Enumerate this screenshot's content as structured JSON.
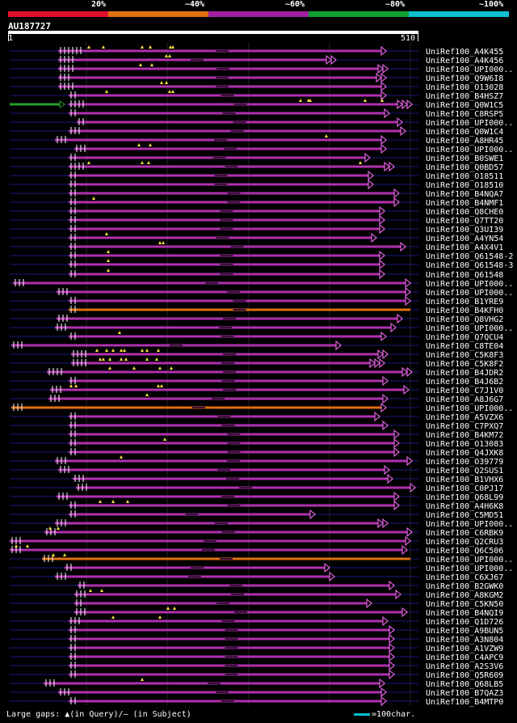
{
  "legend": {
    "labels": [
      "20%",
      "~40%",
      "~60%",
      "~80%",
      "~100%"
    ],
    "colors": [
      "#e0102a",
      "#e07010",
      "#a020a0",
      "#10a030",
      "#10c0d0"
    ]
  },
  "query": {
    "name": "AU187727",
    "start": "1",
    "end": "510"
  },
  "footer": {
    "gaps_text": "Large gaps: ▲(in Query)/— (in Subject)",
    "scale_text": "=100char."
  },
  "hits": [
    {
      "label": "UniRef100_A4K455",
      "start": 72,
      "end": 478,
      "color": "#b030b0",
      "tris": [
        1
      ],
      "gaps": [
        6
      ],
      "marks": [
        110,
        128,
        176,
        186,
        211,
        214
      ]
    },
    {
      "label": "UniRef100_A4K456",
      "start": 72,
      "end": 416,
      "color": "#b030b0",
      "tris": [
        2
      ],
      "gaps": [
        4
      ],
      "marks": [
        206,
        210
      ]
    },
    {
      "label": "UniRef100_UPI000..",
      "start": 72,
      "end": 480,
      "color": "#b030b0",
      "tris": [
        2
      ],
      "gaps": [
        4
      ],
      "marks": [
        174,
        188
      ]
    },
    {
      "label": "UniRef100_Q9W6I8",
      "start": 72,
      "end": 478,
      "color": "#b030b0",
      "tris": [
        2
      ],
      "gaps": [
        3
      ],
      "marks": []
    },
    {
      "label": "UniRef100_O13028",
      "start": 72,
      "end": 478,
      "color": "#b030b0",
      "tris": [
        1
      ],
      "gaps": [
        4
      ],
      "marks": [
        200,
        206
      ]
    },
    {
      "label": "UniRef100_B4HSZ7",
      "start": 85,
      "end": 478,
      "color": "#b030b0",
      "tris": [
        1
      ],
      "gaps": [
        2
      ],
      "marks": [
        132,
        210,
        214
      ]
    },
    {
      "label": "UniRef100_Q0W1C5",
      "start": 85,
      "end": 510,
      "color": "#b030b0",
      "tris": [
        3
      ],
      "gaps": [
        4
      ],
      "marks": [
        372,
        382,
        384,
        452,
        473
      ],
      "pre": {
        "start": 12,
        "end": 74,
        "color": "#20a030"
      }
    },
    {
      "label": "UniRef100_C8RSP5",
      "start": 85,
      "end": 482,
      "color": "#b030b0",
      "tris": [
        1
      ],
      "gaps": [
        2
      ],
      "marks": []
    },
    {
      "label": "UniRef100_UPI000..",
      "start": 95,
      "end": 498,
      "color": "#b030b0",
      "tris": [
        1
      ],
      "gaps": [
        2
      ],
      "marks": []
    },
    {
      "label": "UniRef100_Q0W1C4",
      "start": 85,
      "end": 502,
      "color": "#b030b0",
      "tris": [
        1
      ],
      "gaps": [
        3
      ],
      "marks": []
    },
    {
      "label": "UniRef100_A8HR45",
      "start": 68,
      "end": 478,
      "color": "#b030b0",
      "tris": [
        1
      ],
      "gaps": [
        3
      ],
      "marks": [
        404
      ]
    },
    {
      "label": "UniRef100_UPI000..",
      "start": 92,
      "end": 478,
      "color": "#b030b0",
      "tris": [
        1
      ],
      "gaps": [
        3
      ],
      "marks": [
        172,
        186
      ]
    },
    {
      "label": "UniRef100_B0SWE1",
      "start": 85,
      "end": 458,
      "color": "#b030b0",
      "tris": [
        1
      ],
      "gaps": [
        2
      ],
      "marks": []
    },
    {
      "label": "UniRef100_Q0BD57",
      "start": 85,
      "end": 488,
      "color": "#b030b0",
      "tris": [
        2
      ],
      "gaps": [
        4
      ],
      "marks": [
        110,
        176,
        184,
        446
      ]
    },
    {
      "label": "UniRef100_O18511",
      "start": 85,
      "end": 462,
      "color": "#b030b0",
      "tris": [
        1
      ],
      "gaps": [
        2
      ],
      "marks": []
    },
    {
      "label": "UniRef100_O18510",
      "start": 85,
      "end": 462,
      "color": "#b030b0",
      "tris": [
        1
      ],
      "gaps": [
        2
      ],
      "marks": []
    },
    {
      "label": "UniRef100_B4NQA7",
      "start": 85,
      "end": 494,
      "color": "#b030b0",
      "tris": [
        1
      ],
      "gaps": [
        2
      ],
      "marks": []
    },
    {
      "label": "UniRef100_B4NMF1",
      "start": 85,
      "end": 494,
      "color": "#b030b0",
      "tris": [
        1
      ],
      "gaps": [
        2
      ],
      "marks": [
        116
      ]
    },
    {
      "label": "UniRef100_Q8CHE0",
      "start": 85,
      "end": 476,
      "color": "#b030b0",
      "tris": [
        1
      ],
      "gaps": [
        2
      ],
      "marks": []
    },
    {
      "label": "UniRef100_Q7TT20",
      "start": 85,
      "end": 476,
      "color": "#b030b0",
      "tris": [
        1
      ],
      "gaps": [
        2
      ],
      "marks": []
    },
    {
      "label": "UniRef100_Q3UI39",
      "start": 85,
      "end": 476,
      "color": "#b030b0",
      "tris": [
        1
      ],
      "gaps": [
        2
      ],
      "marks": []
    },
    {
      "label": "UniRef100_A4YN54",
      "start": 85,
      "end": 466,
      "color": "#b030b0",
      "tris": [
        1
      ],
      "gaps": [
        2
      ],
      "marks": [
        132
      ]
    },
    {
      "label": "UniRef100_A4X4V1",
      "start": 85,
      "end": 502,
      "color": "#b030b0",
      "tris": [
        1
      ],
      "gaps": [
        2
      ],
      "marks": [
        198,
        202
      ]
    },
    {
      "label": "UniRef100_Q61548-2",
      "start": 85,
      "end": 476,
      "color": "#b030b0",
      "tris": [
        1
      ],
      "gaps": [
        2
      ],
      "marks": [
        134
      ]
    },
    {
      "label": "UniRef100_Q61548-3",
      "start": 85,
      "end": 476,
      "color": "#b030b0",
      "tris": [
        1
      ],
      "gaps": [
        2
      ],
      "marks": [
        134
      ]
    },
    {
      "label": "UniRef100_Q61548",
      "start": 85,
      "end": 476,
      "color": "#b030b0",
      "tris": [
        1
      ],
      "gaps": [
        2
      ],
      "marks": [
        134
      ]
    },
    {
      "label": "UniRef100_UPI000..",
      "start": 16,
      "end": 508,
      "color": "#b030b0",
      "tris": [
        1
      ],
      "gaps": [
        3
      ],
      "marks": []
    },
    {
      "label": "UniRef100_UPI000..",
      "start": 70,
      "end": 508,
      "color": "#b030b0",
      "tris": [
        1
      ],
      "gaps": [
        3
      ],
      "marks": []
    },
    {
      "label": "UniRef100_B1YRE9",
      "start": 85,
      "end": 508,
      "color": "#b030b0",
      "tris": [
        1
      ],
      "gaps": [
        2
      ],
      "marks": []
    },
    {
      "label": "UniRef100_B4KFH0",
      "start": 85,
      "end": 508,
      "color": "#e07010",
      "tris": [
        0
      ],
      "gaps": [
        2
      ],
      "marks": []
    },
    {
      "label": "UniRef100_Q8VHG2",
      "start": 70,
      "end": 498,
      "color": "#b030b0",
      "tris": [
        1
      ],
      "gaps": [
        3
      ],
      "marks": []
    },
    {
      "label": "UniRef100_UPI000..",
      "start": 68,
      "end": 490,
      "color": "#b030b0",
      "tris": [
        1
      ],
      "gaps": [
        3
      ],
      "marks": []
    },
    {
      "label": "UniRef100_Q7QCU4",
      "start": 85,
      "end": 478,
      "color": "#b030b0",
      "tris": [
        1
      ],
      "gaps": [
        2
      ],
      "marks": [
        148
      ]
    },
    {
      "label": "UniRef100_C8TE04",
      "start": 14,
      "end": 422,
      "color": "#b030b0",
      "tris": [
        1
      ],
      "gaps": [
        3
      ],
      "marks": []
    },
    {
      "label": "UniRef100_C5K8F3",
      "start": 88,
      "end": 480,
      "color": "#b030b0",
      "tris": [
        2
      ],
      "gaps": [
        4
      ],
      "marks": [
        120,
        132,
        140,
        150,
        154,
        176,
        182,
        196
      ]
    },
    {
      "label": "UniRef100_C5K8F2",
      "start": 88,
      "end": 476,
      "color": "#b030b0",
      "tris": [
        3
      ],
      "gaps": [
        4
      ],
      "marks": [
        124,
        128,
        136,
        150,
        156,
        182,
        194
      ]
    },
    {
      "label": "UniRef100_B4JDR2",
      "start": 58,
      "end": 510,
      "color": "#b030b0",
      "tris": [
        2
      ],
      "gaps": [
        4
      ],
      "marks": [
        136,
        166,
        198,
        212
      ]
    },
    {
      "label": "UniRef100_B4J6B2",
      "start": 85,
      "end": 480,
      "color": "#b030b0",
      "tris": [
        1
      ],
      "gaps": [
        2
      ],
      "marks": []
    },
    {
      "label": "UniRef100_C7J1V0",
      "start": 62,
      "end": 506,
      "color": "#b030b0",
      "tris": [
        1
      ],
      "gaps": [
        3
      ],
      "marks": [
        88,
        94,
        196,
        200
      ]
    },
    {
      "label": "UniRef100_A8J6G7",
      "start": 60,
      "end": 480,
      "color": "#b030b0",
      "tris": [
        1
      ],
      "gaps": [
        3
      ],
      "marks": [
        182
      ]
    },
    {
      "label": "UniRef100_UPI000..",
      "start": 14,
      "end": 478,
      "color": "#e07010",
      "tris": [
        1
      ],
      "gaps": [
        3
      ],
      "marks": []
    },
    {
      "label": "UniRef100_A5VZX6",
      "start": 85,
      "end": 470,
      "color": "#b030b0",
      "tris": [
        1
      ],
      "gaps": [
        2
      ],
      "marks": []
    },
    {
      "label": "UniRef100_C7PXQ7",
      "start": 85,
      "end": 480,
      "color": "#b030b0",
      "tris": [
        1
      ],
      "gaps": [
        2
      ],
      "marks": []
    },
    {
      "label": "UniRef100_B4KM72",
      "start": 85,
      "end": 494,
      "color": "#b030b0",
      "tris": [
        1
      ],
      "gaps": [
        2
      ],
      "marks": []
    },
    {
      "label": "UniRef100_O13083",
      "start": 85,
      "end": 494,
      "color": "#b030b0",
      "tris": [
        1
      ],
      "gaps": [
        2
      ],
      "marks": [
        204
      ]
    },
    {
      "label": "UniRef100_Q4JXK8",
      "start": 85,
      "end": 494,
      "color": "#b030b0",
      "tris": [
        1
      ],
      "gaps": [
        2
      ],
      "marks": []
    },
    {
      "label": "UniRef100_O39779",
      "start": 68,
      "end": 510,
      "color": "#b030b0",
      "tris": [
        1
      ],
      "gaps": [
        3
      ],
      "marks": [
        150
      ]
    },
    {
      "label": "UniRef100_Q2SUS1",
      "start": 72,
      "end": 482,
      "color": "#b030b0",
      "tris": [
        1
      ],
      "gaps": [
        3
      ],
      "marks": []
    },
    {
      "label": "UniRef100_B1VHX6",
      "start": 90,
      "end": 486,
      "color": "#b030b0",
      "tris": [
        1
      ],
      "gaps": [
        3
      ],
      "marks": []
    },
    {
      "label": "UniRef100_C0PJ17",
      "start": 94,
      "end": 514,
      "color": "#b030b0",
      "tris": [
        1
      ],
      "gaps": [
        3
      ],
      "marks": []
    },
    {
      "label": "UniRef100_Q68L99",
      "start": 70,
      "end": 494,
      "color": "#b030b0",
      "tris": [
        1
      ],
      "gaps": [
        3
      ],
      "marks": []
    },
    {
      "label": "UniRef100_A4H6K8",
      "start": 85,
      "end": 494,
      "color": "#b030b0",
      "tris": [
        1
      ],
      "gaps": [
        2
      ],
      "marks": [
        124,
        140,
        158
      ]
    },
    {
      "label": "UniRef100_C5MD51",
      "start": 85,
      "end": 390,
      "color": "#b030b0",
      "tris": [
        1
      ],
      "gaps": [
        2
      ],
      "marks": []
    },
    {
      "label": "UniRef100_UPI000..",
      "start": 68,
      "end": 480,
      "color": "#b030b0",
      "tris": [
        2
      ],
      "gaps": [
        3
      ],
      "marks": []
    },
    {
      "label": "UniRef100_C6RBK9",
      "start": 55,
      "end": 510,
      "color": "#b030b0",
      "tris": [
        1
      ],
      "gaps": [
        3
      ],
      "marks": [
        62,
        72
      ]
    },
    {
      "label": "UniRef100_Q2CRU3",
      "start": 12,
      "end": 508,
      "color": "#b030b0",
      "tris": [
        1
      ],
      "gaps": [
        3
      ],
      "marks": []
    },
    {
      "label": "UniRef100_Q6C506",
      "start": 12,
      "end": 504,
      "color": "#b030b0",
      "tris": [
        1
      ],
      "gaps": [
        3
      ],
      "marks": [
        20,
        34
      ]
    },
    {
      "label": "UniRef100_UPI000..",
      "start": 52,
      "end": 508,
      "color": "#e07010",
      "tris": [
        0
      ],
      "gaps": [
        3
      ],
      "marks": [
        66,
        80
      ]
    },
    {
      "label": "UniRef100_UPI000..",
      "start": 80,
      "end": 408,
      "color": "#b030b0",
      "tris": [
        1
      ],
      "gaps": [
        2
      ],
      "marks": []
    },
    {
      "label": "UniRef100_C6XJ67",
      "start": 68,
      "end": 414,
      "color": "#b030b0",
      "tris": [
        1
      ],
      "gaps": [
        3
      ],
      "marks": []
    },
    {
      "label": "UniRef100_B2GWK0",
      "start": 96,
      "end": 488,
      "color": "#b030b0",
      "tris": [
        1
      ],
      "gaps": [
        2
      ],
      "marks": []
    },
    {
      "label": "UniRef100_A8KGM2",
      "start": 92,
      "end": 496,
      "color": "#b030b0",
      "tris": [
        1
      ],
      "gaps": [
        3
      ],
      "marks": [
        112,
        126
      ]
    },
    {
      "label": "UniRef100_C5KN50",
      "start": 92,
      "end": 460,
      "color": "#b030b0",
      "tris": [
        1
      ],
      "gaps": [
        2
      ],
      "marks": []
    },
    {
      "label": "UniRef100_B4NQI9",
      "start": 92,
      "end": 504,
      "color": "#b030b0",
      "tris": [
        1
      ],
      "gaps": [
        3
      ],
      "marks": [
        208,
        216
      ]
    },
    {
      "label": "UniRef100_Q1D726",
      "start": 85,
      "end": 480,
      "color": "#b030b0",
      "tris": [
        1
      ],
      "gaps": [
        3
      ],
      "marks": [
        140,
        198
      ]
    },
    {
      "label": "UniRef100_A9BUN5",
      "start": 85,
      "end": 488,
      "color": "#b030b0",
      "tris": [
        1
      ],
      "gaps": [
        2
      ],
      "marks": []
    },
    {
      "label": "UniRef100_A3N804",
      "start": 85,
      "end": 488,
      "color": "#b030b0",
      "tris": [
        1
      ],
      "gaps": [
        2
      ],
      "marks": []
    },
    {
      "label": "UniRef100_A1VZW9",
      "start": 85,
      "end": 488,
      "color": "#b030b0",
      "tris": [
        1
      ],
      "gaps": [
        2
      ],
      "marks": []
    },
    {
      "label": "UniRef100_C4APC9",
      "start": 85,
      "end": 488,
      "color": "#b030b0",
      "tris": [
        1
      ],
      "gaps": [
        2
      ],
      "marks": []
    },
    {
      "label": "UniRef100_A2S3V6",
      "start": 85,
      "end": 488,
      "color": "#b030b0",
      "tris": [
        1
      ],
      "gaps": [
        2
      ],
      "marks": []
    },
    {
      "label": "UniRef100_Q5R609",
      "start": 85,
      "end": 488,
      "color": "#b030b0",
      "tris": [
        1
      ],
      "gaps": [
        2
      ],
      "marks": []
    },
    {
      "label": "UniRef100_Q68LB5",
      "start": 54,
      "end": 476,
      "color": "#b030b0",
      "tris": [
        1
      ],
      "gaps": [
        3
      ],
      "marks": [
        176
      ]
    },
    {
      "label": "UniRef100_B7QAZ3",
      "start": 72,
      "end": 478,
      "color": "#b030b0",
      "tris": [
        1
      ],
      "gaps": [
        3
      ],
      "marks": []
    },
    {
      "label": "UniRef100_B4MTP0",
      "start": 85,
      "end": 478,
      "color": "#b030b0",
      "tris": [
        1
      ],
      "gaps": [
        2
      ],
      "marks": []
    }
  ]
}
